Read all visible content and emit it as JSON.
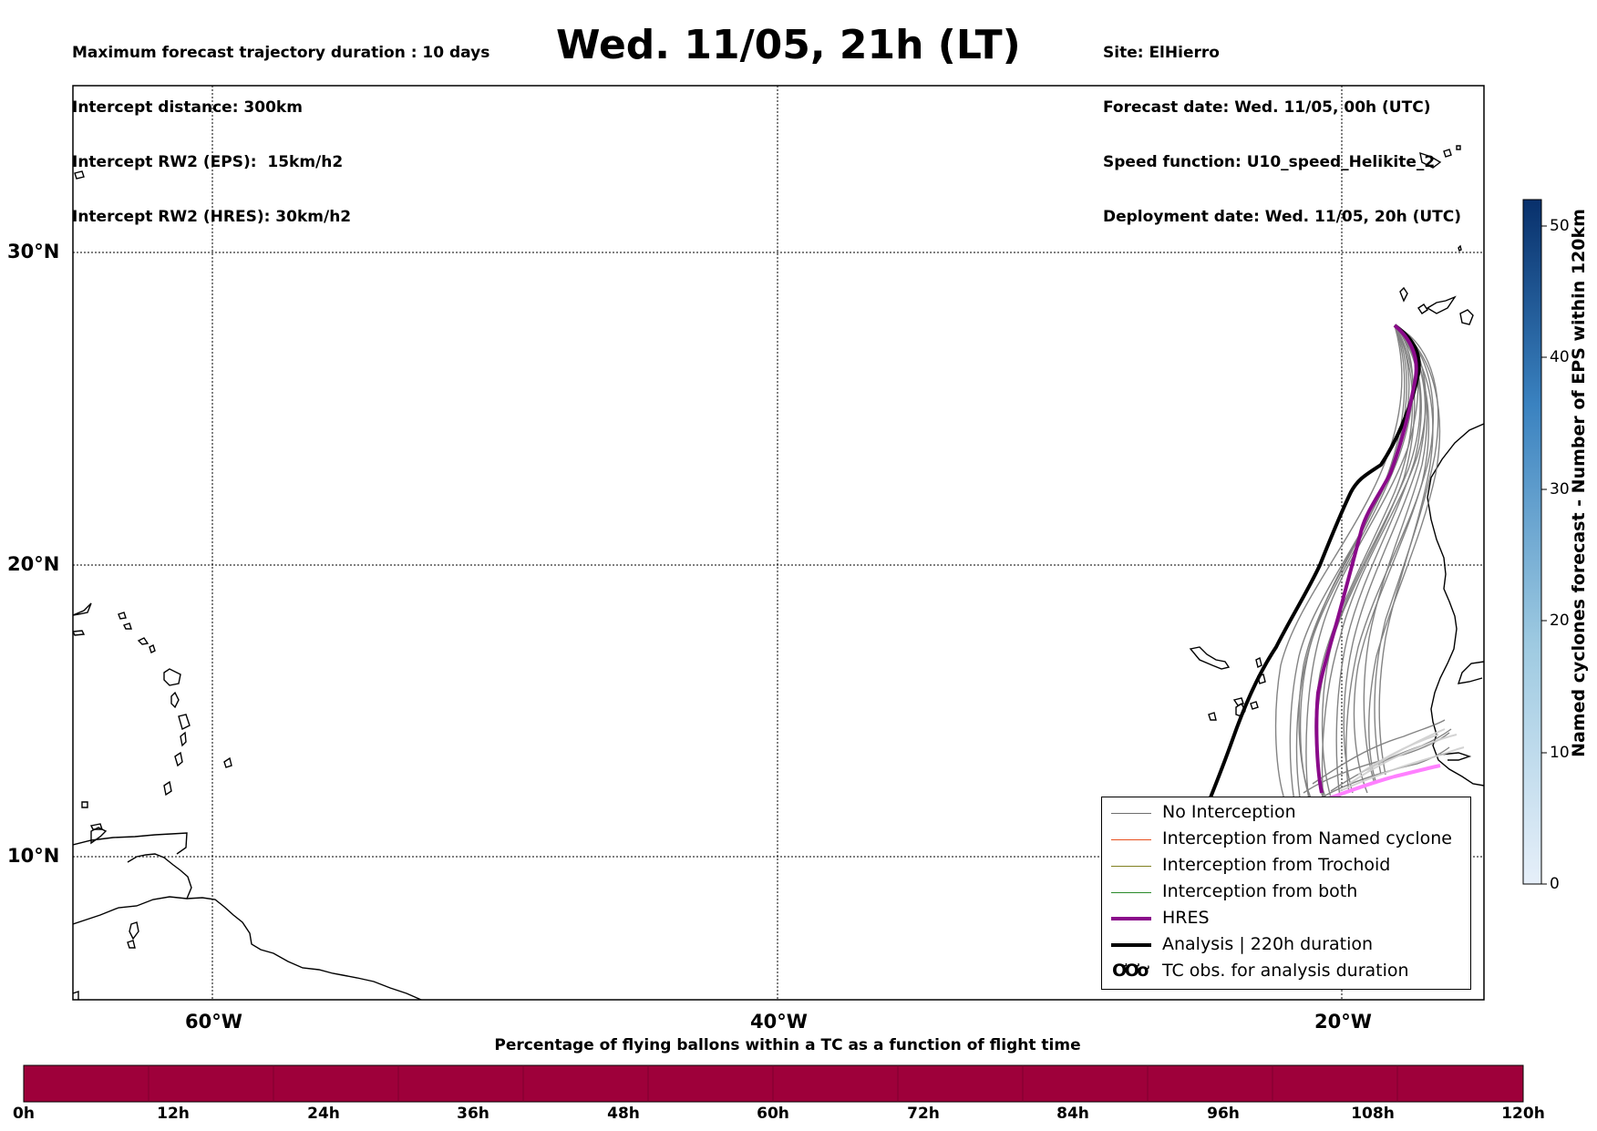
{
  "header": {
    "left_lines": [
      "Maximum forecast trajectory duration : 10 days",
      "Intercept distance: 300km",
      "Intercept RW2 (EPS):  15km/h2",
      "Intercept RW2 (HRES): 30km/h2"
    ],
    "title": "Wed. 11/05, 21h (LT)",
    "right_lines": [
      "Site: ElHierro",
      "Forecast date: Wed. 11/05, 00h (UTC)",
      "Speed function: U10_speed_Helikite_2",
      "Deployment date: Wed. 11/05, 20h (UTC)"
    ]
  },
  "map": {
    "lat_labels": [
      "30°N",
      "20°N",
      "10°N"
    ],
    "lon_labels": [
      "60°W",
      "40°W",
      "20°W"
    ],
    "colors": {
      "no_interception": "#6e6e6e",
      "named_cyclone": "#e8501e",
      "trochoid": "#808020",
      "both": "#2a8a2a",
      "hres": "#8a0a8a",
      "analysis": "#000000",
      "late_hres": "#ff80ff"
    }
  },
  "legend": {
    "items": [
      {
        "label": "No Interception",
        "kind": "no_interception"
      },
      {
        "label": "Interception from Named cyclone",
        "kind": "named_cyclone"
      },
      {
        "label": "Interception from Trochoid",
        "kind": "trochoid"
      },
      {
        "label": "Interception from both",
        "kind": "both"
      },
      {
        "label": "HRES",
        "kind": "hres"
      },
      {
        "label": "Analysis | 220h duration",
        "kind": "analysis"
      },
      {
        "label": "TC obs. for analysis duration",
        "kind": "tc_obs",
        "glyph": "ƠƠơ"
      }
    ]
  },
  "colorbar": {
    "title": "Named cyclones forecast - Number of EPS within 120km",
    "ticks": [
      "0",
      "10",
      "20",
      "30",
      "40",
      "50"
    ],
    "range": [
      0,
      52
    ],
    "colors": [
      "#e6eff9",
      "#08306b"
    ]
  },
  "timebar": {
    "title": "Percentage of flying ballons within a TC as a function of flight time",
    "ticks": [
      "0h",
      "12h",
      "24h",
      "36h",
      "48h",
      "60h",
      "72h",
      "84h",
      "96h",
      "108h",
      "120h"
    ],
    "color": "#9e003a"
  }
}
